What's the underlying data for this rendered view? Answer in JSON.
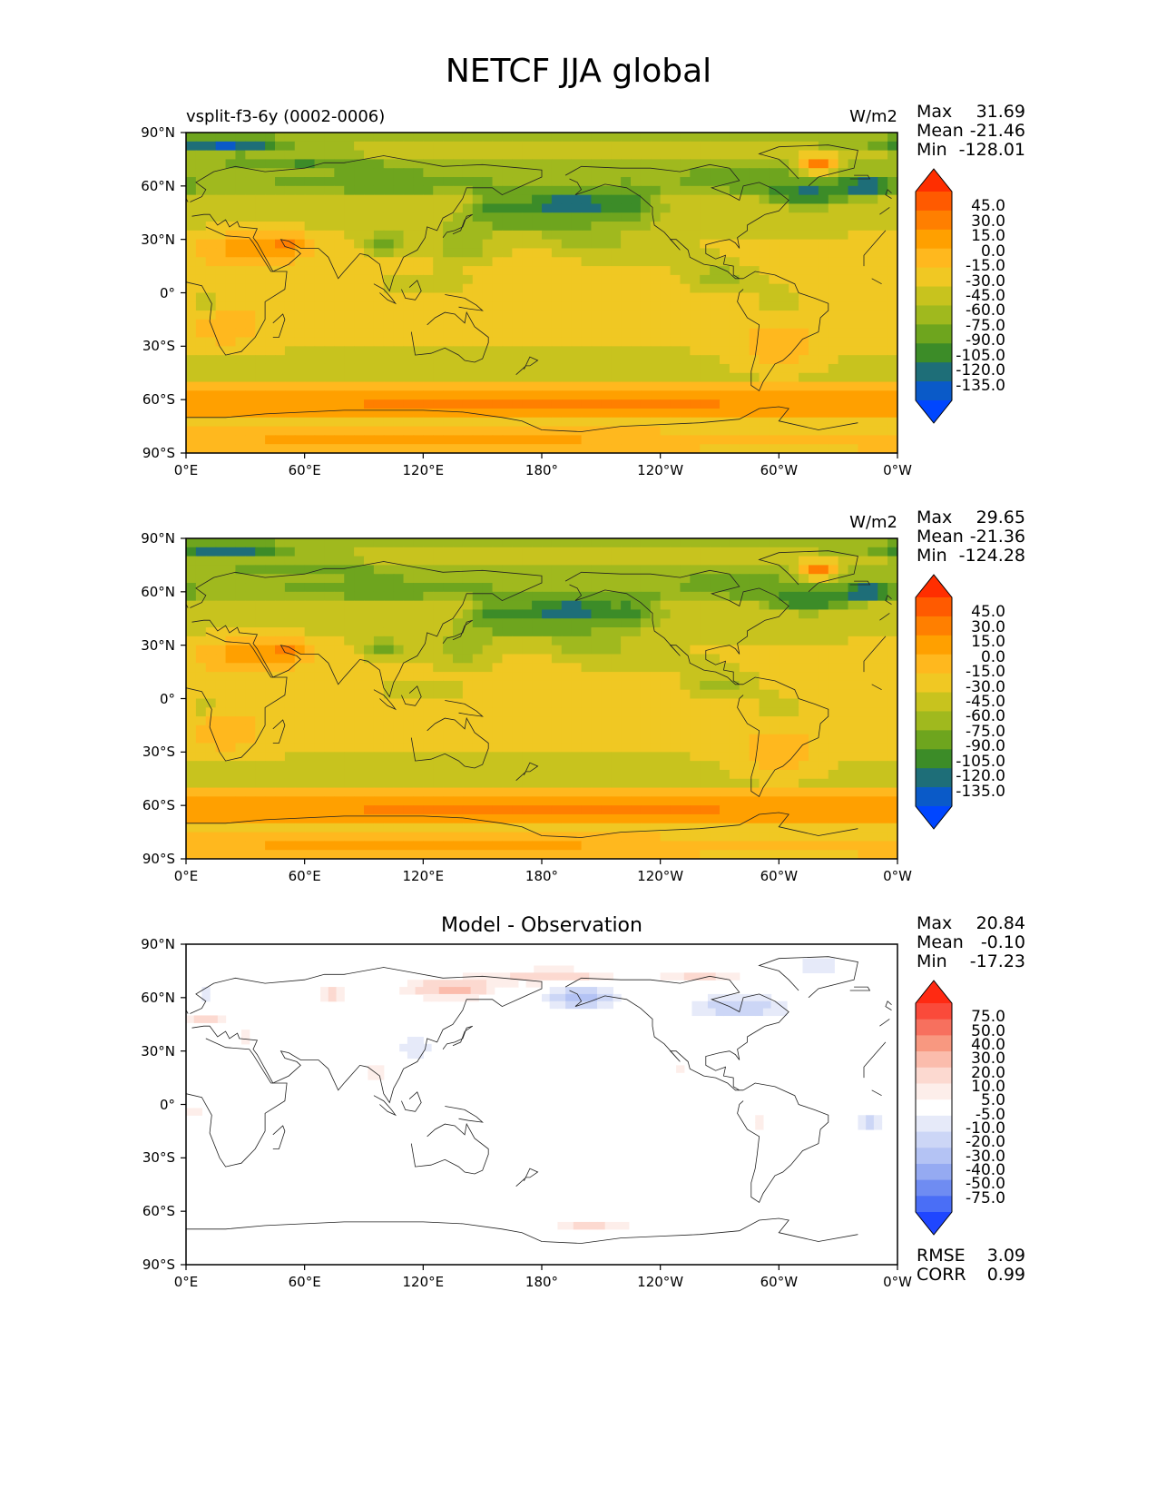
{
  "title": "NETCF JJA global",
  "panels": [
    {
      "subtitle_left": "vsplit-f3-6y (0002-0006)",
      "subtitle_center": "",
      "units": "W/m2",
      "stats": [
        {
          "label": "Max",
          "value": "31.69"
        },
        {
          "label": "Mean",
          "value": "-21.46"
        },
        {
          "label": "Min",
          "value": "-128.01"
        }
      ],
      "colorbar_labels": [
        "45.0",
        "30.0",
        "15.0",
        "0.0",
        "-15.0",
        "-30.0",
        "-45.0",
        "-60.0",
        "-75.0",
        "-90.0",
        "-105.0",
        "-120.0",
        "-135.0"
      ],
      "extra_stats": []
    },
    {
      "subtitle_left": "",
      "subtitle_center": "",
      "units": "W/m2",
      "stats": [
        {
          "label": "Max",
          "value": "29.65"
        },
        {
          "label": "Mean",
          "value": "-21.36"
        },
        {
          "label": "Min",
          "value": "-124.28"
        }
      ],
      "colorbar_labels": [
        "45.0",
        "30.0",
        "15.0",
        "0.0",
        "-15.0",
        "-30.0",
        "-45.0",
        "-60.0",
        "-75.0",
        "-90.0",
        "-105.0",
        "-120.0",
        "-135.0"
      ],
      "extra_stats": []
    },
    {
      "subtitle_left": "",
      "subtitle_center": "Model - Observation",
      "units": "",
      "stats": [
        {
          "label": "Max",
          "value": "20.84"
        },
        {
          "label": "Mean",
          "value": "-0.10"
        },
        {
          "label": "Min",
          "value": "-17.23"
        }
      ],
      "colorbar_labels": [
        "75.0",
        "50.0",
        "40.0",
        "30.0",
        "20.0",
        "10.0",
        "5.0",
        "-5.0",
        "-10.0",
        "-20.0",
        "-30.0",
        "-40.0",
        "-50.0",
        "-75.0"
      ],
      "extra_stats": [
        {
          "label": "RMSE",
          "value": "3.09"
        },
        {
          "label": "CORR",
          "value": "0.99"
        }
      ]
    }
  ],
  "lat_ticks": [
    "90°N",
    "60°N",
    "30°N",
    "0°",
    "30°S",
    "60°S",
    "90°S"
  ],
  "lon_ticks": [
    "0°E",
    "60°E",
    "120°E",
    "180°",
    "120°W",
    "60°W",
    "0°W"
  ],
  "colors": {
    "model_bins": [
      "#ff2e00",
      "#ff5a00",
      "#ff7f00",
      "#ffa000",
      "#ffb81e",
      "#f0c823",
      "#c8c31e",
      "#a0b91e",
      "#6ea51e",
      "#3c8c28",
      "#1e6e78",
      "#0a5ac8",
      "#0046ff"
    ],
    "diff_bins": [
      "#ff2a12",
      "#fa4a3a",
      "#f7705e",
      "#f89880",
      "#fbbcac",
      "#fcd9d0",
      "#fdeeea",
      "#ffffff",
      "#e6eaf9",
      "#ccd6f6",
      "#b4c3f4",
      "#95aaf2",
      "#6f8cf2",
      "#4a6ef6",
      "#1f46ff"
    ]
  }
}
